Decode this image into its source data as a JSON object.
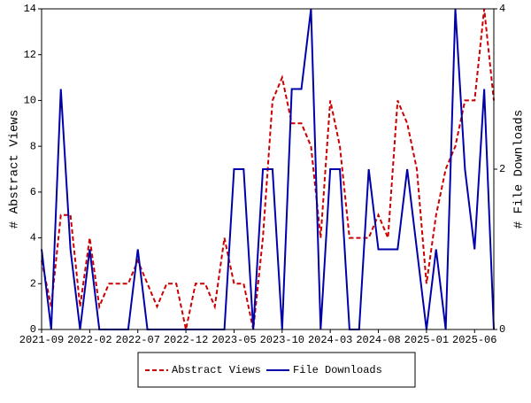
{
  "chart_data": {
    "type": "line",
    "categories": [
      "2021-09",
      null,
      null,
      null,
      null,
      "2022-02",
      null,
      null,
      null,
      null,
      "2022-07",
      null,
      null,
      null,
      null,
      "2022-12",
      null,
      null,
      null,
      null,
      "2023-05",
      null,
      null,
      null,
      null,
      "2023-10",
      null,
      null,
      null,
      null,
      "2024-03",
      null,
      null,
      null,
      null,
      "2024-08",
      null,
      null,
      null,
      null,
      "2025-01",
      null,
      null,
      null,
      null,
      "2025-06",
      null,
      null
    ],
    "series": [
      {
        "name": "Abstract Views",
        "color": "#cc0000",
        "dash": true,
        "values": [
          3,
          1,
          5,
          5,
          1,
          4,
          1,
          2,
          2,
          2,
          3,
          2,
          1,
          2,
          2,
          0,
          2,
          2,
          1,
          4,
          2,
          2,
          0,
          4,
          10,
          11,
          9,
          9,
          8,
          4,
          10,
          8,
          4,
          4,
          4,
          5,
          4,
          10,
          9,
          7,
          2,
          5,
          7,
          8,
          10,
          10,
          14,
          10
        ]
      },
      {
        "name": "File Downloads",
        "color": "#0000aa",
        "axis": "y2",
        "values": [
          1,
          0,
          3,
          1,
          0,
          1,
          0,
          0,
          0,
          0,
          1,
          0,
          0,
          0,
          0,
          0,
          0,
          0,
          0,
          0,
          2,
          2,
          0,
          2,
          2,
          0,
          3,
          3,
          4,
          0,
          2,
          2,
          0,
          0,
          2,
          1,
          1,
          1,
          2,
          1,
          0,
          1,
          0,
          4,
          2,
          1,
          3,
          0
        ]
      }
    ],
    "ylabel": "# Abstract Views",
    "y2label": "# File Downloads",
    "ylim": [
      0,
      14
    ],
    "yticks": [
      0,
      2,
      4,
      6,
      8,
      10,
      12,
      14
    ],
    "y2lim": [
      0,
      4
    ],
    "y2ticks": [
      0,
      2,
      4
    ]
  }
}
